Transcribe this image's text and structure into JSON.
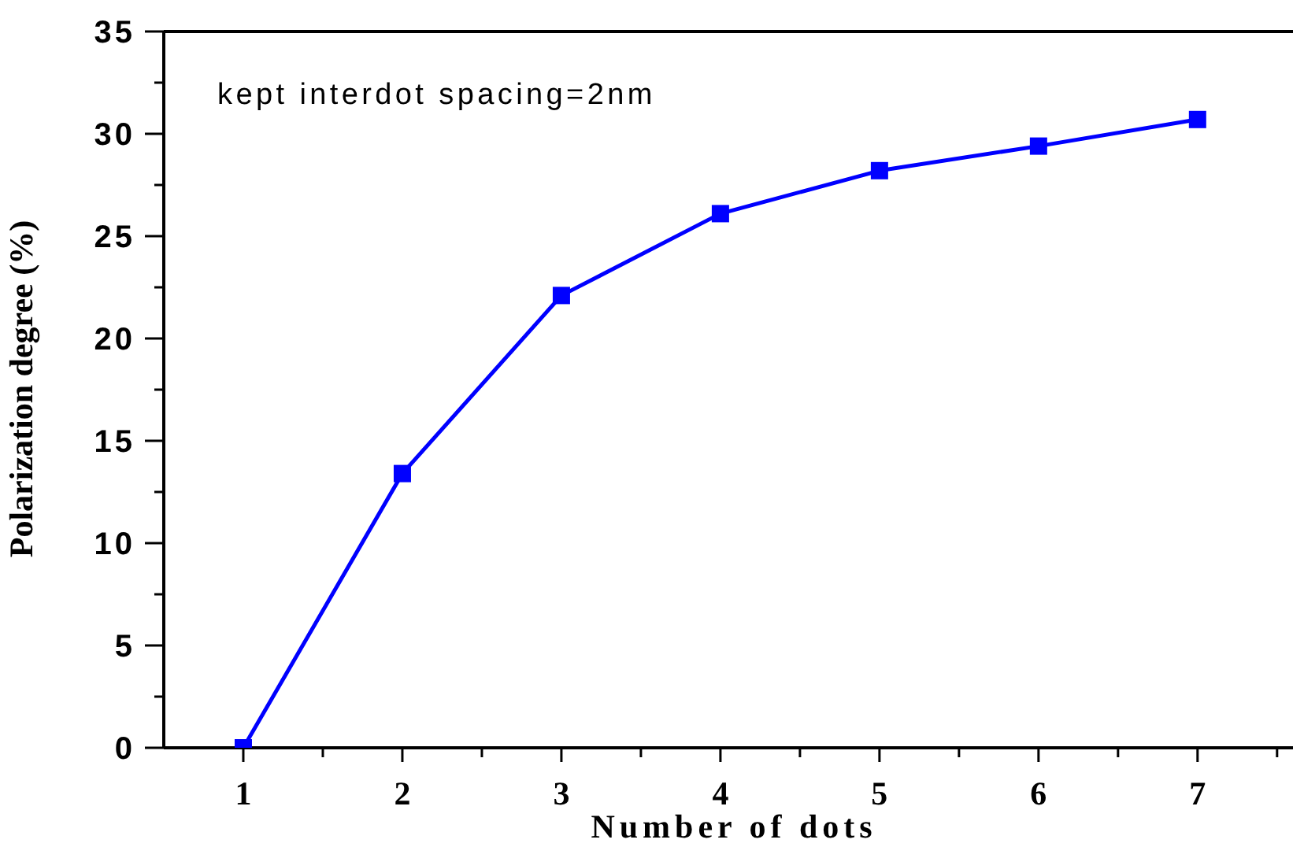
{
  "chart_data": {
    "type": "line",
    "xlabel": "Number of dots",
    "ylabel": "Polarization degree (%)",
    "annotations": [
      "kept interdot spacing=2nm"
    ],
    "x": [
      1,
      2,
      3,
      4,
      5,
      6,
      7
    ],
    "series": [
      {
        "color": "#0000ff",
        "values": [
          0,
          13.4,
          22.1,
          26.1,
          28.2,
          29.4,
          30.7
        ]
      }
    ],
    "xlim": [
      0.5,
      7.6
    ],
    "xticks": [
      1,
      {
        "value": 1.5,
        "label": null
      },
      2,
      {
        "value": 2.5,
        "label": null
      },
      3,
      {
        "value": 3.5,
        "label": null
      },
      4,
      {
        "value": 4.5,
        "label": null
      },
      5,
      {
        "value": 5.5,
        "label": null
      },
      6,
      {
        "value": 6.5,
        "label": null
      },
      7,
      {
        "value": 7.5,
        "label": null
      }
    ],
    "ylim": [
      0,
      35
    ],
    "yticks": [
      0,
      {
        "value": 2.5,
        "label": null
      },
      5,
      {
        "value": 7.5,
        "label": null
      },
      10,
      {
        "value": 12.5,
        "label": null
      },
      15,
      {
        "value": 17.5,
        "label": null
      },
      20,
      {
        "value": 22.5,
        "label": null
      },
      25,
      {
        "value": 27.5,
        "label": null
      },
      30,
      {
        "value": 32.5,
        "label": null
      },
      35
    ],
    "marker": "square",
    "line_style": "solid",
    "grid": false,
    "legend": false
  }
}
